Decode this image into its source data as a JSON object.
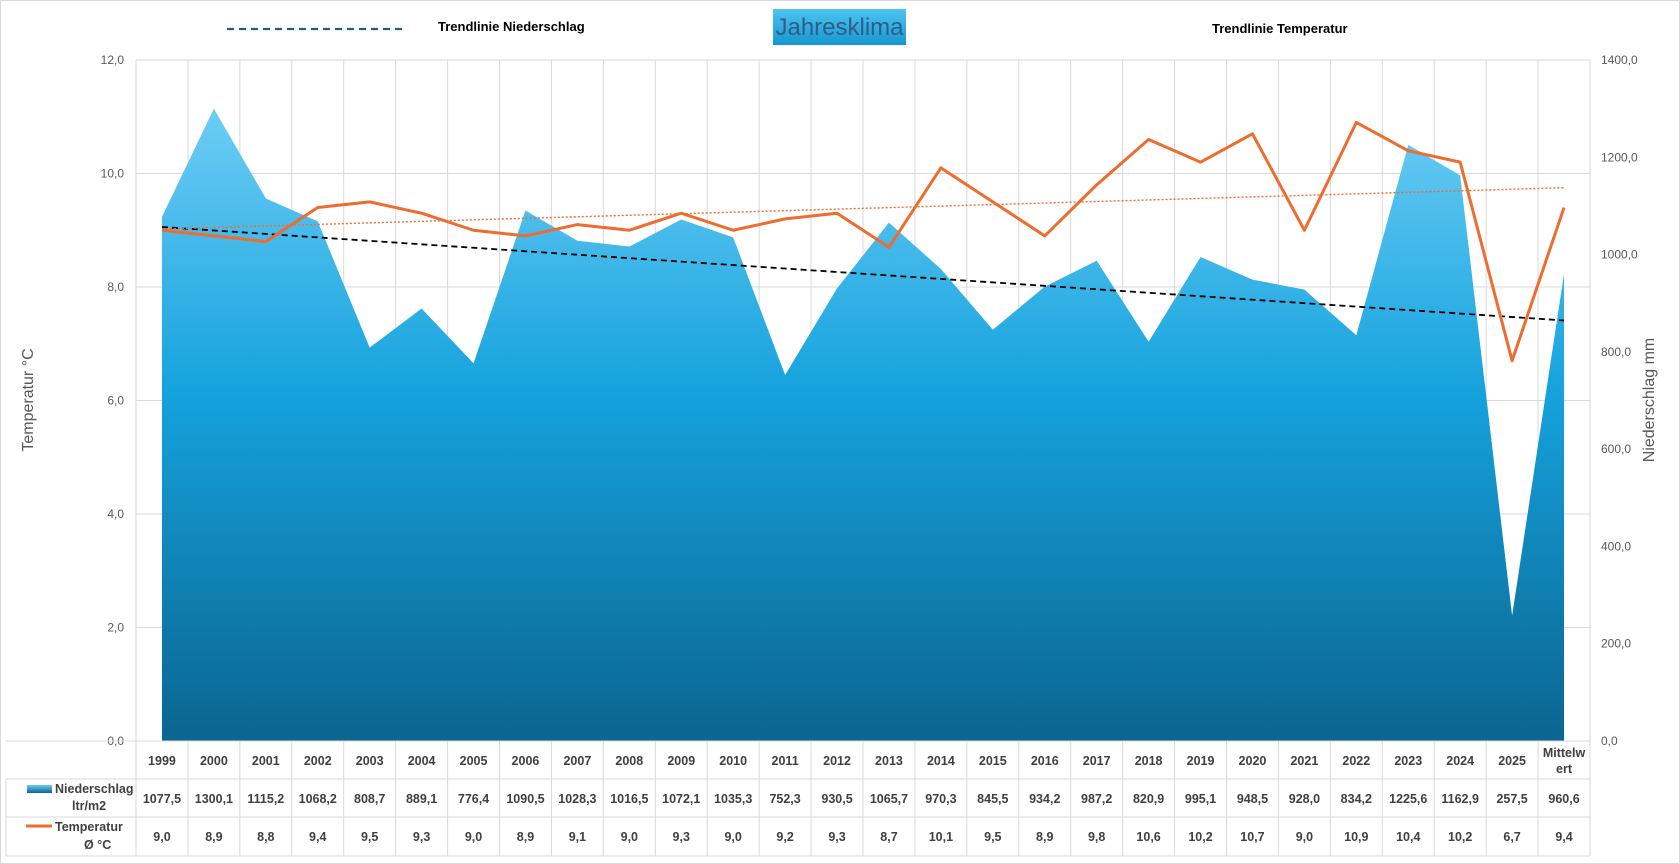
{
  "chart_data": {
    "type": "area",
    "title": "Jahresklima",
    "categories": [
      "1999",
      "2000",
      "2001",
      "2002",
      "2003",
      "2004",
      "2005",
      "2006",
      "2007",
      "2008",
      "2009",
      "2010",
      "2011",
      "2012",
      "2013",
      "2014",
      "2015",
      "2016",
      "2017",
      "2018",
      "2019",
      "2020",
      "2021",
      "2022",
      "2023",
      "2024",
      "2025",
      "Mittelwert"
    ],
    "category_label_lines": {
      "Mittelwert": [
        "Mittelw",
        "ert"
      ]
    },
    "series": [
      {
        "name": "Niederschlag ltr/m2",
        "type": "area",
        "axis": "right",
        "color": "#1ea2dc",
        "values": [
          1077.5,
          1300.1,
          1115.2,
          1068.2,
          808.7,
          889.1,
          776.4,
          1090.5,
          1028.3,
          1016.5,
          1072.1,
          1035.3,
          752.3,
          930.5,
          1065.7,
          970.3,
          845.5,
          934.2,
          987.2,
          820.9,
          995.1,
          948.5,
          928.0,
          834.2,
          1225.6,
          1162.9,
          257.5,
          960.6
        ],
        "labels": [
          "1077,5",
          "1300,1",
          "1115,2",
          "1068,2",
          "808,7",
          "889,1",
          "776,4",
          "1090,5",
          "1028,3",
          "1016,5",
          "1072,1",
          "1035,3",
          "752,3",
          "930,5",
          "1065,7",
          "970,3",
          "845,5",
          "934,2",
          "987,2",
          "820,9",
          "995,1",
          "948,5",
          "928,0",
          "834,2",
          "1225,6",
          "1162,9",
          "257,5",
          "960,6"
        ]
      },
      {
        "name": "Temperatur Ø °C",
        "type": "line",
        "axis": "left",
        "color": "#ed6c2e",
        "values": [
          9.0,
          8.9,
          8.8,
          9.4,
          9.5,
          9.3,
          9.0,
          8.9,
          9.1,
          9.0,
          9.3,
          9.0,
          9.2,
          9.3,
          8.7,
          10.1,
          9.5,
          8.9,
          9.8,
          10.6,
          10.2,
          10.7,
          9.0,
          10.9,
          10.4,
          10.2,
          6.7,
          9.4
        ],
        "labels": [
          "9,0",
          "8,9",
          "8,8",
          "9,4",
          "9,5",
          "9,3",
          "9,0",
          "8,9",
          "9,1",
          "9,0",
          "9,3",
          "9,0",
          "9,2",
          "9,3",
          "8,7",
          "10,1",
          "9,5",
          "8,9",
          "9,8",
          "10,6",
          "10,2",
          "10,7",
          "9,0",
          "10,9",
          "10,4",
          "10,2",
          "6,7",
          "9,4"
        ]
      }
    ],
    "row_labels": {
      "precip": [
        "Niederschlag",
        "ltr/m2"
      ],
      "temp": [
        "Temperatur",
        "Ø °C"
      ]
    },
    "trendlines": [
      {
        "name": "Trendlinie Niederschlag",
        "series": "Niederschlag ltr/m2",
        "color": "#000000",
        "legend_color": "#1f5f7a",
        "style": "dashed"
      },
      {
        "name": "Trendlinie Temperatur",
        "series": "Temperatur Ø °C",
        "color": "#ed6c2e",
        "style": "dotted"
      }
    ],
    "ylabel_left": "Temperatur °C",
    "ylabel_right": "Niederschlag mm",
    "ylim_left": [
      0,
      12
    ],
    "ylim_right": [
      0,
      1400
    ],
    "yticks_left": [
      "0,0",
      "2,0",
      "4,0",
      "6,0",
      "8,0",
      "10,0",
      "12,0"
    ],
    "yticks_right": [
      "0,0",
      "200,0",
      "400,0",
      "600,0",
      "800,0",
      "1000,0",
      "1200,0",
      "1400,0"
    ],
    "grid": true,
    "legend_position": "top",
    "data_table": true
  }
}
